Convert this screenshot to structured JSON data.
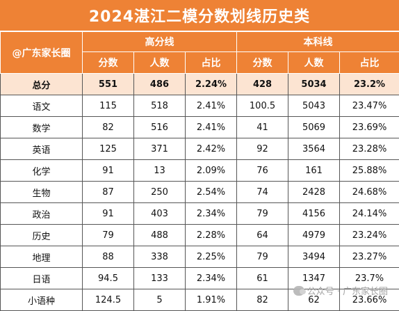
{
  "title": "2024湛江二模分数划线历史类",
  "corner_label": "@广东家长圈",
  "groups": [
    "高分线",
    "本科线"
  ],
  "sub_headers": [
    "分数",
    "人数",
    "占比",
    "分数",
    "人数",
    "占比"
  ],
  "total": {
    "subject": "总分",
    "cells": [
      "551",
      "486",
      "2.24%",
      "428",
      "5034",
      "23.2%"
    ]
  },
  "rows": [
    {
      "subject": "语文",
      "cells": [
        "115",
        "518",
        "2.41%",
        "100.5",
        "5043",
        "23.47%"
      ]
    },
    {
      "subject": "数学",
      "cells": [
        "82",
        "516",
        "2.41%",
        "41",
        "5069",
        "23.69%"
      ]
    },
    {
      "subject": "英语",
      "cells": [
        "125",
        "371",
        "2.42%",
        "92",
        "3564",
        "23.28%"
      ]
    },
    {
      "subject": "化学",
      "cells": [
        "91",
        "13",
        "2.09%",
        "76",
        "161",
        "25.88%"
      ]
    },
    {
      "subject": "生物",
      "cells": [
        "87",
        "250",
        "2.54%",
        "74",
        "2428",
        "24.68%"
      ]
    },
    {
      "subject": "政治",
      "cells": [
        "91",
        "403",
        "2.34%",
        "79",
        "4156",
        "24.14%"
      ]
    },
    {
      "subject": "历史",
      "cells": [
        "79",
        "488",
        "2.28%",
        "64",
        "4979",
        "23.24%"
      ]
    },
    {
      "subject": "地理",
      "cells": [
        "88",
        "338",
        "2.25%",
        "79",
        "3494",
        "23.27%"
      ]
    },
    {
      "subject": "日语",
      "cells": [
        "94.5",
        "133",
        "2.34%",
        "61",
        "1347",
        "23.7%"
      ]
    },
    {
      "subject": "小语种",
      "cells": [
        "124.5",
        "5",
        "1.91%",
        "82",
        "62",
        "23.66%"
      ]
    }
  ],
  "watermark": "公众号 · 广东家长圈",
  "colors": {
    "header": "#ee8235",
    "total_row": "#fce4d2"
  }
}
